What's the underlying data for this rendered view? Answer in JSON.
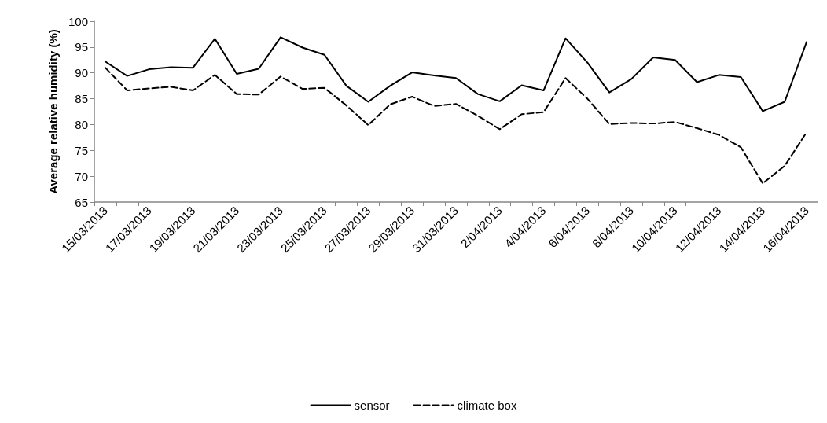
{
  "chart_data": {
    "type": "line",
    "ylabel": "Average relative humidity (%)",
    "categories": [
      "15/03/2013",
      null,
      "17/03/2013",
      null,
      "19/03/2013",
      null,
      "21/03/2013",
      null,
      "23/03/2013",
      null,
      "25/03/2013",
      null,
      "27/03/2013",
      null,
      "29/03/2013",
      null,
      "31/03/2013",
      null,
      "2/04/2013",
      null,
      "4/04/2013",
      null,
      "6/04/2013",
      null,
      "8/04/2013",
      null,
      "10/04/2013",
      null,
      "12/04/2013",
      null,
      "14/04/2013",
      null,
      "16/04/2013"
    ],
    "series": [
      {
        "name": "sensor",
        "color": "#000000",
        "line_style": "solid",
        "values": [
          92.2,
          89.4,
          90.7,
          91.1,
          91.0,
          96.6,
          89.8,
          90.8,
          96.9,
          94.9,
          93.5,
          87.5,
          84.4,
          87.5,
          90.1,
          89.5,
          89.0,
          85.9,
          84.5,
          87.6,
          86.6,
          96.7,
          92.0,
          86.2,
          88.8,
          93.0,
          92.5,
          88.2,
          89.6,
          89.2,
          82.6,
          84.4,
          96.0
        ]
      },
      {
        "name": "climate box",
        "color": "#000000",
        "line_style": "dashed",
        "values": [
          91.0,
          86.6,
          87.0,
          87.3,
          86.6,
          89.6,
          85.9,
          85.8,
          89.3,
          86.9,
          87.1,
          83.7,
          79.9,
          83.9,
          85.4,
          83.6,
          84.0,
          81.7,
          79.1,
          82.0,
          82.4,
          89.0,
          85.0,
          80.1,
          80.3,
          80.2,
          80.5,
          79.3,
          78.0,
          75.6,
          68.6,
          72.0,
          78.5
        ]
      }
    ],
    "ylim": [
      65,
      100
    ],
    "yticks": [
      65,
      70,
      75,
      80,
      85,
      90,
      95,
      100
    ],
    "grid": false,
    "legend": "bottom",
    "marker": "none"
  }
}
